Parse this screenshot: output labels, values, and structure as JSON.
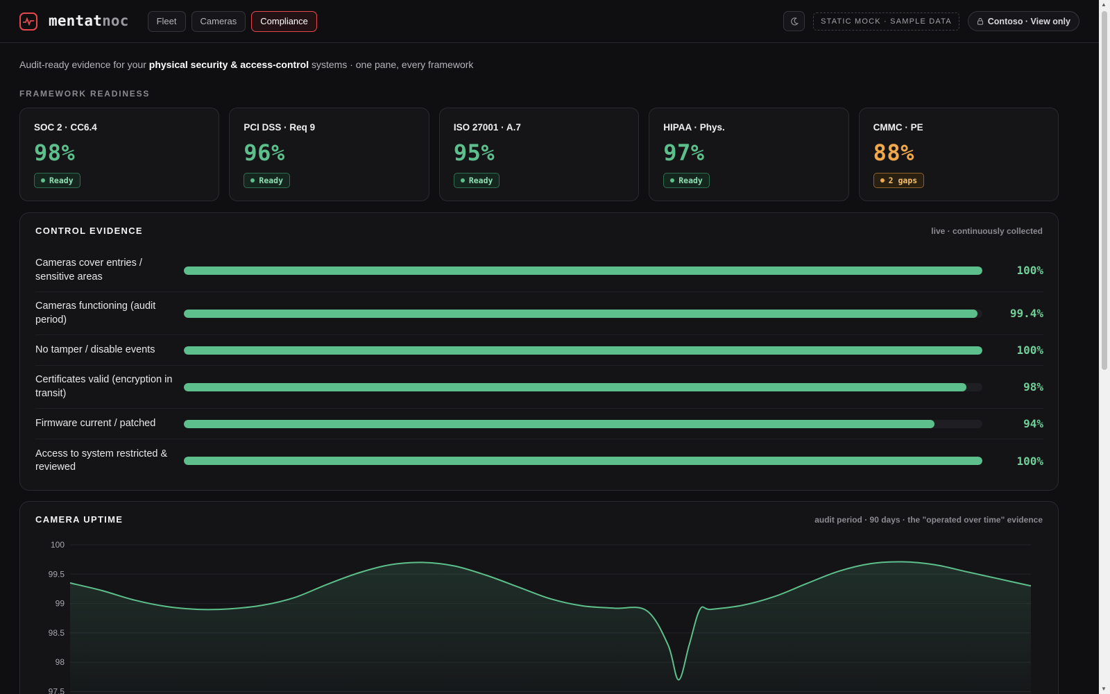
{
  "header": {
    "brand_primary": "mentat",
    "brand_secondary": "noc",
    "tabs": [
      {
        "label": "Fleet",
        "active": false
      },
      {
        "label": "Cameras",
        "active": false
      },
      {
        "label": "Compliance",
        "active": true
      }
    ],
    "theme_icon": "moon-icon",
    "mock_badge": "STATIC MOCK · SAMPLE DATA",
    "tenant_label": "Contoso · View only",
    "tenant_icon": "lock-icon"
  },
  "subtitle": {
    "prefix": "Audit-ready evidence for your ",
    "emphasis": "physical security & access-control",
    "suffix": " systems · one pane, every framework"
  },
  "readiness": {
    "section_label": "FRAMEWORK READINESS",
    "frameworks": [
      {
        "name": "SOC 2 · CC6.4",
        "percent": "98%",
        "status": "Ready",
        "state": "ok"
      },
      {
        "name": "PCI DSS · Req 9",
        "percent": "96%",
        "status": "Ready",
        "state": "ok"
      },
      {
        "name": "ISO 27001 · A.7",
        "percent": "95%",
        "status": "Ready",
        "state": "ok"
      },
      {
        "name": "HIPAA · Phys.",
        "percent": "97%",
        "status": "Ready",
        "state": "ok"
      },
      {
        "name": "CMMC · PE",
        "percent": "88%",
        "status": "2 gaps",
        "state": "warn"
      }
    ]
  },
  "evidence": {
    "title": "CONTROL EVIDENCE",
    "note": "live · continuously collected",
    "controls": [
      {
        "label": "Cameras cover entries / sensitive areas",
        "value": 100,
        "display": "100%"
      },
      {
        "label": "Cameras functioning (audit period)",
        "value": 99.4,
        "display": "99.4%"
      },
      {
        "label": "No tamper / disable events",
        "value": 100,
        "display": "100%"
      },
      {
        "label": "Certificates valid (encryption in transit)",
        "value": 98,
        "display": "98%"
      },
      {
        "label": "Firmware current / patched",
        "value": 94,
        "display": "94%"
      },
      {
        "label": "Access to system restricted & reviewed",
        "value": 100,
        "display": "100%"
      }
    ]
  },
  "uptime": {
    "title": "CAMERA UPTIME",
    "note": "audit period · 90 days · the \"operated over time\" evidence"
  },
  "colors": {
    "accent": "#e5484d",
    "ok": "#5dbf8b",
    "ok_text": "#6fcf97",
    "warn": "#f0a84a"
  },
  "chart_data": {
    "type": "area",
    "title": "CAMERA UPTIME",
    "xlabel": "",
    "ylabel": "",
    "ylim": [
      97.4,
      100
    ],
    "yticks": [
      "100",
      "99.5",
      "99",
      "98.5",
      "98",
      "97.5"
    ],
    "ytick_values": [
      100,
      99.5,
      99,
      98.5,
      98,
      97.5
    ],
    "grid": true,
    "x": [
      0,
      3,
      6,
      9,
      12,
      15,
      18,
      21,
      24,
      27,
      30,
      33,
      36,
      39,
      42,
      45,
      48,
      51,
      54,
      56,
      57,
      58,
      59,
      60,
      63,
      66,
      69,
      72,
      75,
      78,
      81,
      84,
      87,
      90
    ],
    "values": [
      99.35,
      99.22,
      99.06,
      98.95,
      98.9,
      98.91,
      98.97,
      99.1,
      99.32,
      99.52,
      99.66,
      99.7,
      99.64,
      99.48,
      99.28,
      99.08,
      98.96,
      98.92,
      98.88,
      98.3,
      97.7,
      98.3,
      98.9,
      98.9,
      98.97,
      99.12,
      99.34,
      99.55,
      99.68,
      99.71,
      99.66,
      99.54,
      99.42,
      99.3
    ],
    "series": [
      {
        "name": "",
        "color": "#5dbf8b"
      }
    ]
  }
}
